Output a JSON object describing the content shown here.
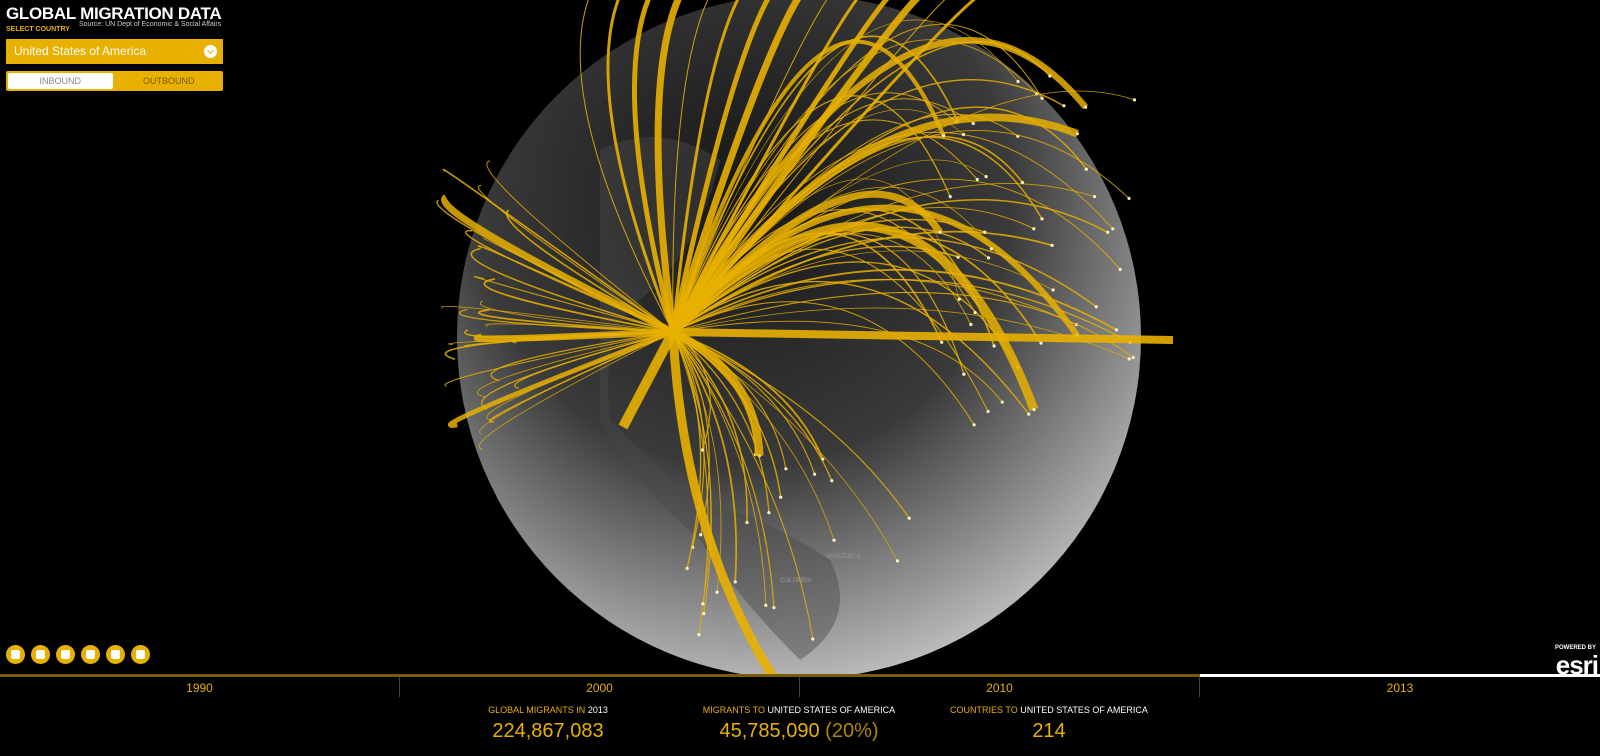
{
  "header": {
    "title": "GLOBAL MIGRATION DATA",
    "source": "Source: UN Dept of Economic & Social Affairs"
  },
  "country_select": {
    "label": "SELECT COUNTRY",
    "value": "United States of America"
  },
  "direction_toggle": {
    "options": [
      "INBOUND",
      "OUTBOUND"
    ]
  },
  "map_labels": [
    "VENEZUELA",
    "COLOMBIA"
  ],
  "timeline": {
    "years": [
      "1990",
      "2000",
      "2010",
      "2013"
    ]
  },
  "stats": [
    {
      "label": "GLOBAL MIGRANTS IN",
      "subject": "2013",
      "value": "224,867,083"
    },
    {
      "label": "MIGRANTS TO",
      "subject": "UNITED STATES OF AMERICA",
      "value": "45,785,090",
      "share": "(20%)"
    },
    {
      "label": "COUNTRIES TO",
      "subject": "UNITED STATES OF AMERICA",
      "value": "214"
    }
  ],
  "branding": {
    "powered_by": "POWERED BY",
    "logo": "esri"
  }
}
